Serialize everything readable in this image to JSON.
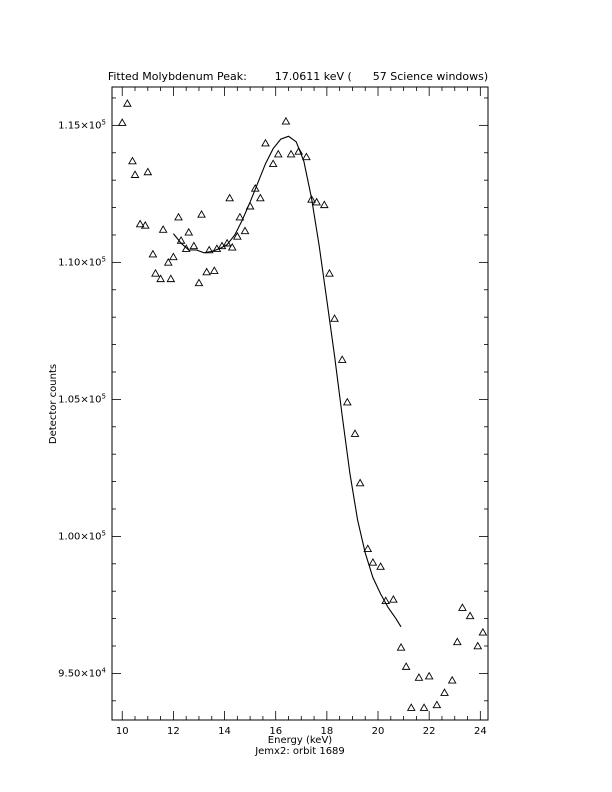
{
  "chart_data": {
    "type": "scatter",
    "title": "Fitted Molybdenum Peak:        17.0611 keV (      57 Science windows)",
    "xlabel": "Energy (keV)",
    "subtitle": "Jemx2: orbit 1689",
    "ylabel": "Detector counts",
    "xlim": [
      9.6,
      24.3
    ],
    "ylim": [
      93300,
      116400
    ],
    "x_ticks": [
      10,
      12,
      14,
      16,
      18,
      20,
      22,
      24
    ],
    "x_tick_labels": [
      "10",
      "12",
      "14",
      "16",
      "18",
      "20",
      "22",
      "24"
    ],
    "y_ticks": [
      95000,
      100000,
      105000,
      110000,
      115000
    ],
    "y_tick_labels": [
      {
        "mantissa": "9.50×10",
        "exp": "4"
      },
      {
        "mantissa": "1.00×10",
        "exp": "5"
      },
      {
        "mantissa": "1.05×10",
        "exp": "5"
      },
      {
        "mantissa": "1.10×10",
        "exp": "5"
      },
      {
        "mantissa": "1.15×10",
        "exp": "5"
      }
    ],
    "series": [
      {
        "marker": "triangle",
        "points": [
          [
            10.0,
            115100
          ],
          [
            10.2,
            115800
          ],
          [
            10.4,
            113700
          ],
          [
            10.5,
            113200
          ],
          [
            10.7,
            111400
          ],
          [
            10.9,
            111350
          ],
          [
            11.0,
            113300
          ],
          [
            11.2,
            110300
          ],
          [
            11.3,
            109600
          ],
          [
            11.5,
            109400
          ],
          [
            11.6,
            111200
          ],
          [
            11.8,
            110000
          ],
          [
            11.9,
            109400
          ],
          [
            12.0,
            110200
          ],
          [
            12.2,
            111650
          ],
          [
            12.3,
            110800
          ],
          [
            12.5,
            110500
          ],
          [
            12.6,
            111100
          ],
          [
            12.8,
            110600
          ],
          [
            13.0,
            109250
          ],
          [
            13.1,
            111750
          ],
          [
            13.3,
            109650
          ],
          [
            13.4,
            110450
          ],
          [
            13.6,
            109700
          ],
          [
            13.7,
            110500
          ],
          [
            13.9,
            110600
          ],
          [
            14.1,
            110700
          ],
          [
            14.2,
            112350
          ],
          [
            14.3,
            110550
          ],
          [
            14.5,
            110950
          ],
          [
            14.6,
            111650
          ],
          [
            14.8,
            111150
          ],
          [
            15.0,
            112050
          ],
          [
            15.2,
            112700
          ],
          [
            15.4,
            112350
          ],
          [
            15.6,
            114350
          ],
          [
            15.9,
            113600
          ],
          [
            16.1,
            113950
          ],
          [
            16.4,
            115150
          ],
          [
            16.6,
            113950
          ],
          [
            16.9,
            114050
          ],
          [
            17.2,
            113850
          ],
          [
            17.4,
            112300
          ],
          [
            17.6,
            112200
          ],
          [
            17.9,
            112100
          ],
          [
            18.1,
            109600
          ],
          [
            18.3,
            107950
          ],
          [
            18.6,
            106450
          ],
          [
            18.8,
            104900
          ],
          [
            19.1,
            103750
          ],
          [
            19.3,
            101950
          ],
          [
            19.6,
            99550
          ],
          [
            19.8,
            99050
          ],
          [
            20.1,
            98900
          ],
          [
            20.3,
            97650
          ],
          [
            20.6,
            97700
          ],
          [
            20.9,
            95950
          ],
          [
            21.1,
            95250
          ],
          [
            21.3,
            93750
          ],
          [
            21.6,
            94850
          ],
          [
            21.8,
            93750
          ],
          [
            22.0,
            94900
          ],
          [
            22.3,
            93850
          ],
          [
            22.6,
            94300
          ],
          [
            22.9,
            94750
          ],
          [
            23.1,
            96150
          ],
          [
            23.3,
            97400
          ],
          [
            23.6,
            97100
          ],
          [
            23.9,
            96000
          ],
          [
            24.1,
            96500
          ]
        ]
      },
      {
        "style": "line",
        "points": [
          [
            12.0,
            111050
          ],
          [
            12.3,
            110700
          ],
          [
            12.6,
            110450
          ],
          [
            12.9,
            110450
          ],
          [
            13.2,
            110350
          ],
          [
            13.5,
            110400
          ],
          [
            13.8,
            110500
          ],
          [
            14.1,
            110650
          ],
          [
            14.4,
            111000
          ],
          [
            14.7,
            111550
          ],
          [
            15.0,
            112200
          ],
          [
            15.3,
            112900
          ],
          [
            15.6,
            113600
          ],
          [
            15.9,
            114150
          ],
          [
            16.2,
            114500
          ],
          [
            16.5,
            114600
          ],
          [
            16.8,
            114400
          ],
          [
            17.1,
            113700
          ],
          [
            17.4,
            112350
          ],
          [
            17.7,
            110600
          ],
          [
            18.0,
            108600
          ],
          [
            18.3,
            106600
          ],
          [
            18.6,
            104400
          ],
          [
            18.9,
            102300
          ],
          [
            19.2,
            100600
          ],
          [
            19.5,
            99400
          ],
          [
            19.8,
            98500
          ],
          [
            20.1,
            97900
          ],
          [
            20.4,
            97400
          ],
          [
            20.7,
            97000
          ],
          [
            20.9,
            96700
          ]
        ]
      }
    ]
  }
}
